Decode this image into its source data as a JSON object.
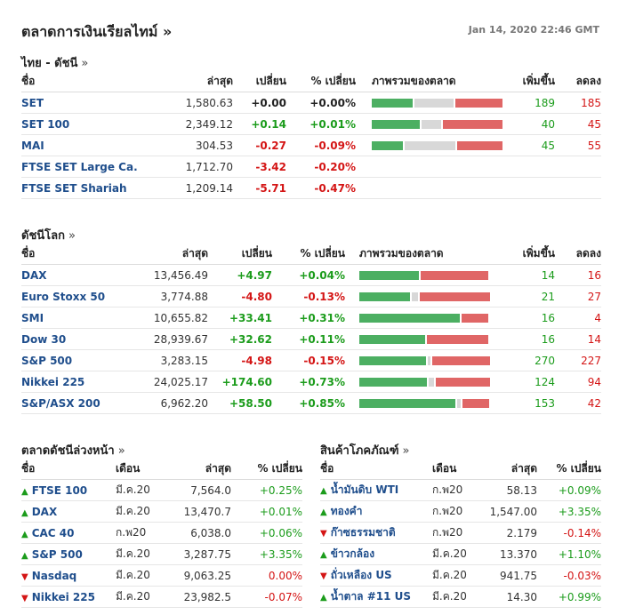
{
  "title": "ตลาดการเงินเรียลไทม์ »",
  "timestamp": "Jan 14, 2020 22:46 GMT",
  "thai": {
    "title": "ไทย - ดัชนี",
    "arrow": "»",
    "headers": {
      "name": "ชื่อ",
      "last": "ล่าสุด",
      "chg": "เปลี่ยน",
      "pct": "% เปลี่ยน",
      "overview": "ภาพรวมของตลาด",
      "adv": "เพิ่มขึ้น",
      "dec": "ลดลง"
    },
    "rows": [
      {
        "name": "SET",
        "last": "1,580.63",
        "chg": "+0.00",
        "pct": "+0.00%",
        "dir": "zero",
        "adv": "189",
        "dec": "185",
        "bar": [
          0.31,
          0.3,
          0.36
        ]
      },
      {
        "name": "SET 100",
        "last": "2,349.12",
        "chg": "+0.14",
        "pct": "+0.01%",
        "dir": "pos",
        "adv": "40",
        "dec": "45",
        "bar": [
          0.37,
          0.15,
          0.46
        ]
      },
      {
        "name": "MAI",
        "last": "304.53",
        "chg": "-0.27",
        "pct": "-0.09%",
        "dir": "neg",
        "adv": "45",
        "dec": "55",
        "bar": [
          0.24,
          0.39,
          0.35
        ]
      },
      {
        "name": "FTSE SET Large Ca.",
        "last": "1,712.70",
        "chg": "-3.42",
        "pct": "-0.20%",
        "dir": "neg",
        "adv": "",
        "dec": "",
        "bar": null
      },
      {
        "name": "FTSE SET Shariah",
        "last": "1,209.14",
        "chg": "-5.71",
        "pct": "-0.47%",
        "dir": "neg",
        "adv": "",
        "dec": "",
        "bar": null
      }
    ]
  },
  "world": {
    "title": "ดัชนีโลก",
    "arrow": "»",
    "headers": {
      "name": "ชื่อ",
      "last": "ล่าสุด",
      "chg": "เปลี่ยน",
      "pct": "% เปลี่ยน",
      "overview": "ภาพรวมของตลาด",
      "adv": "เพิ่มขึ้น",
      "dec": "ลดลง"
    },
    "rows": [
      {
        "name": "DAX",
        "last": "13,456.49",
        "chg": "+4.97",
        "pct": "+0.04%",
        "dir": "pos",
        "adv": "14",
        "dec": "16",
        "bar": [
          0.47,
          0.0,
          0.53
        ]
      },
      {
        "name": "Euro Stoxx 50",
        "last": "3,774.88",
        "chg": "-4.80",
        "pct": "-0.13%",
        "dir": "neg",
        "adv": "21",
        "dec": "27",
        "bar": [
          0.39,
          0.05,
          0.54
        ]
      },
      {
        "name": "SMI",
        "last": "10,655.82",
        "chg": "+33.41",
        "pct": "+0.31%",
        "dir": "pos",
        "adv": "16",
        "dec": "4",
        "bar": [
          0.79,
          0.0,
          0.21
        ]
      },
      {
        "name": "Dow 30",
        "last": "28,939.67",
        "chg": "+32.62",
        "pct": "+0.11%",
        "dir": "pos",
        "adv": "16",
        "dec": "14",
        "bar": [
          0.52,
          0.0,
          0.48
        ]
      },
      {
        "name": "S&P 500",
        "last": "3,283.15",
        "chg": "-4.98",
        "pct": "-0.15%",
        "dir": "neg",
        "adv": "270",
        "dec": "227",
        "bar": [
          0.52,
          0.02,
          0.45
        ]
      },
      {
        "name": "Nikkei 225",
        "last": "24,025.17",
        "chg": "+174.60",
        "pct": "+0.73%",
        "dir": "pos",
        "adv": "124",
        "dec": "94",
        "bar": [
          0.53,
          0.04,
          0.42
        ]
      },
      {
        "name": "S&P/ASX 200",
        "last": "6,962.20",
        "chg": "+58.50",
        "pct": "+0.85%",
        "dir": "pos",
        "adv": "153",
        "dec": "42",
        "bar": [
          0.75,
          0.03,
          0.21
        ]
      }
    ]
  },
  "futures": {
    "title": "ตลาดดัชนีล่วงหน้า",
    "arrow": "»",
    "headers": {
      "name": "ชื่อ",
      "month": "เดือน",
      "last": "ล่าสุด",
      "pct": "% เปลี่ยน"
    },
    "rows": [
      {
        "name": "FTSE 100",
        "month": "มี.ค.20",
        "last": "7,564.0",
        "pct": "+0.25%",
        "dir": "pos"
      },
      {
        "name": "DAX",
        "month": "มี.ค.20",
        "last": "13,470.7",
        "pct": "+0.01%",
        "dir": "pos"
      },
      {
        "name": "CAC 40",
        "month": "ก.พ20",
        "last": "6,038.0",
        "pct": "+0.06%",
        "dir": "pos"
      },
      {
        "name": "S&P 500",
        "month": "มี.ค.20",
        "last": "3,287.75",
        "pct": "+3.35%",
        "dir": "pos"
      },
      {
        "name": "Nasdaq",
        "month": "มี.ค.20",
        "last": "9,063.25",
        "pct": "0.00%",
        "dir": "neg"
      },
      {
        "name": "Nikkei 225",
        "month": "มี.ค.20",
        "last": "23,982.5",
        "pct": "-0.07%",
        "dir": "neg"
      }
    ]
  },
  "commodities": {
    "title": "สินค้าโภคภัณฑ์",
    "arrow": "»",
    "headers": {
      "name": "ชื่อ",
      "month": "เดือน",
      "last": "ล่าสุด",
      "pct": "% เปลี่ยน"
    },
    "rows": [
      {
        "name": "น้ำมันดิบ WTI",
        "month": "ก.พ20",
        "last": "58.13",
        "pct": "+0.09%",
        "dir": "pos"
      },
      {
        "name": "ทองคำ",
        "month": "ก.พ20",
        "last": "1,547.00",
        "pct": "+3.35%",
        "dir": "pos"
      },
      {
        "name": "ก๊าซธรรมชาติ",
        "month": "ก.พ20",
        "last": "2.179",
        "pct": "-0.14%",
        "dir": "neg"
      },
      {
        "name": "ข้าวกล้อง",
        "month": "มี.ค.20",
        "last": "13.370",
        "pct": "+1.10%",
        "dir": "pos"
      },
      {
        "name": "ถั่วเหลือง US",
        "month": "มี.ค.20",
        "last": "941.75",
        "pct": "-0.03%",
        "dir": "neg"
      },
      {
        "name": "น้ำตาล #11 US",
        "month": "มี.ค.20",
        "last": "14.30",
        "pct": "+0.99%",
        "dir": "pos"
      }
    ]
  },
  "colors": {
    "up": "#4caf62",
    "neutral": "#d8d8d8",
    "down": "#e06666",
    "link": "#1f4e8c"
  }
}
